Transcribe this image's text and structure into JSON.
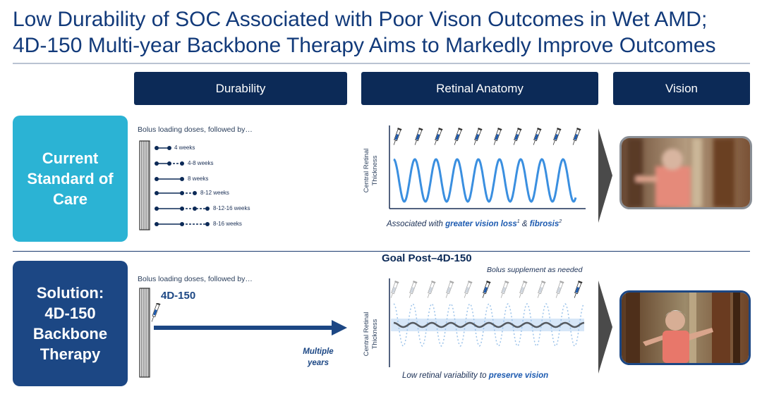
{
  "title": {
    "line1": "Low Durability of SOC Associated with Poor Vison Outcomes in Wet AMD;",
    "line2": "4D-150 Multi-year Backbone Therapy Aims to Markedly Improve Outcomes"
  },
  "columns": {
    "durability": "Durability",
    "retinal_anatomy": "Retinal Anatomy",
    "vision": "Vision"
  },
  "rows": {
    "current": {
      "label_lines": [
        "Current",
        "Standard of",
        "Care"
      ],
      "bolus_text": "Bolus loading doses, followed by…",
      "schedules": [
        "4 weeks",
        "4-8 weeks",
        "8 weeks",
        "8-12 weeks",
        "8-12-16 weeks",
        "8-16 weeks"
      ],
      "y_axis_label_lines": [
        "Central Retinal",
        "Thickness"
      ],
      "caption_prefix": "Associated with ",
      "caption_bold1": "greater vision loss",
      "caption_sup1": "1",
      "caption_mid": " & ",
      "caption_bold2": "fibrosis",
      "caption_sup2": "2"
    },
    "solution": {
      "label_lines": [
        "Solution:",
        "4D-150",
        "Backbone",
        "Therapy"
      ],
      "bolus_text": "Bolus loading doses, followed by…",
      "drug_label": "4D-150",
      "arrow_caption_lines": [
        "Multiple",
        "years"
      ],
      "goal_post": "Goal Post–4D-150",
      "bolus_supplement": "Bolus supplement as needed",
      "y_axis_label_lines": [
        "Central Retinal",
        "Thickness"
      ],
      "caption_prefix": "Low retinal variability to ",
      "caption_bold": "preserve vision"
    }
  },
  "colors": {
    "navy": "#0c2a57",
    "teal": "#2bb3d4",
    "solution_blue": "#1c4784",
    "wave_blue": "#3a8fe0",
    "band_blue": "#d6e6f7"
  },
  "icons": [
    "syringe-icon",
    "vial-stack-icon",
    "chevron-right-icon"
  ]
}
